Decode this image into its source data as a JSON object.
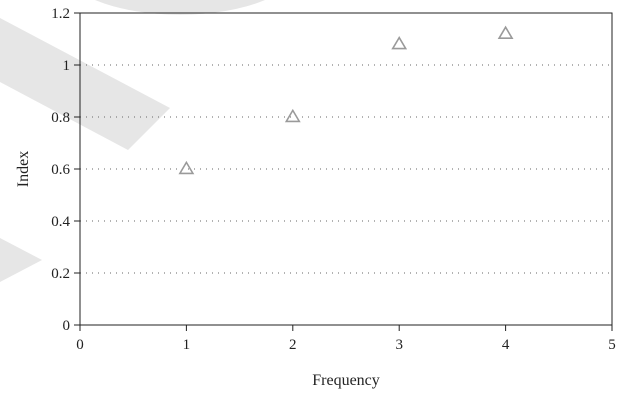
{
  "chart_data": {
    "type": "scatter",
    "title": "",
    "xlabel": "Frequency",
    "ylabel": "Index",
    "xlim": [
      0,
      5
    ],
    "ylim": [
      0,
      1.2
    ],
    "x_ticks": [
      "0",
      "1",
      "2",
      "3",
      "4",
      "5"
    ],
    "y_ticks": [
      "0",
      "0.2",
      "0.4",
      "0.6",
      "0.8",
      "1",
      "1.2"
    ],
    "grid": "horizontal-dotted",
    "marker": "triangle-open",
    "series": [
      {
        "x": [
          1,
          2,
          3,
          4
        ],
        "y": [
          0.6,
          0.8,
          1.08,
          1.12
        ]
      }
    ],
    "colors": {
      "marker": "#9a9a9a",
      "axis": "#222222",
      "grid": "#666666",
      "watermark": "#e6e6e6"
    }
  }
}
